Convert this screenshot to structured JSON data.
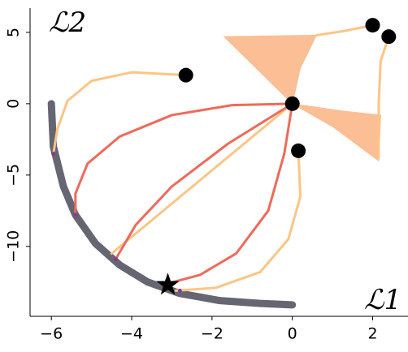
{
  "chart_data": {
    "type": "line",
    "x_label": "ℒ1",
    "y_label": "ℒ2",
    "xlim": [
      -6.53,
      2.88
    ],
    "ylim": [
      -14.9,
      6.7
    ],
    "xticks": [
      {
        "value": -6,
        "label": "−6"
      },
      {
        "value": -4,
        "label": "−4"
      },
      {
        "value": -2,
        "label": "−2"
      },
      0,
      2
    ],
    "yticks": [
      {
        "value": -10,
        "label": "−10"
      },
      {
        "value": -5,
        "label": "−5"
      },
      0,
      5
    ],
    "series": [
      {
        "color": "#fbb88a",
        "fill": true,
        "x": [
          -1.7,
          0.6,
          0.2,
          0
        ],
        "values": [
          4.7,
          4.8,
          2.5,
          0
        ]
      },
      {
        "color": "#fbb88a",
        "fill": true,
        "x": [
          0,
          1.2,
          2.2,
          2.15,
          1.0
        ],
        "values": [
          0,
          -0.5,
          -0.8,
          -4.0,
          -1.6
        ]
      },
      {
        "color": "#666672",
        "width": 9,
        "x": [
          -6,
          -5.95,
          -5.7,
          -5.4,
          -4.9,
          -4.3,
          -3.6,
          -2.8,
          -1.8,
          -0.8,
          0
        ],
        "values": [
          0,
          -3,
          -5.8,
          -7.8,
          -9.8,
          -11.3,
          -12.5,
          -13.3,
          -13.8,
          -14,
          -14.1
        ]
      },
      {
        "color": "#fcc584",
        "width": 3,
        "x": [
          0.6,
          1.3,
          2.0
        ],
        "values": [
          4.8,
          5.1,
          5.5
        ]
      },
      {
        "color": "#fcc584",
        "width": 3,
        "x": [
          2.4,
          2.2,
          2.15,
          2.15
        ],
        "values": [
          4.7,
          3,
          0,
          -3.8
        ]
      },
      {
        "color": "#fcc584",
        "width": 3,
        "x": [
          -2.65,
          -4.0,
          -5.0,
          -5.6,
          -5.85,
          -5.95
        ],
        "values": [
          2.0,
          2.2,
          1.6,
          0.2,
          -1.8,
          -3.5
        ]
      },
      {
        "color": "#ee6a5a",
        "width": 3,
        "x": [
          0,
          -1.5,
          -3.0,
          -4.3,
          -5.1,
          -5.4,
          -5.4
        ],
        "values": [
          0,
          -0.1,
          -0.8,
          -2.3,
          -4.2,
          -6.3,
          -7.8
        ]
      },
      {
        "color": "#fcc584",
        "width": 3,
        "x": [
          0,
          -4.5
        ],
        "values": [
          0,
          -10.5
        ]
      },
      {
        "color": "#ee6a5a",
        "width": 3,
        "x": [
          0,
          -1.6,
          -3.0,
          -3.9,
          -4.4
        ],
        "values": [
          0,
          -2.8,
          -5.8,
          -8.5,
          -10.9
        ]
      },
      {
        "color": "#ee6a5a",
        "width": 3,
        "x": [
          0,
          -0.2,
          -0.6,
          -1.4,
          -2.3,
          -3.1
        ],
        "values": [
          0,
          -3.5,
          -7.5,
          -10.5,
          -12.0,
          -12.6
        ]
      },
      {
        "color": "#fcc584",
        "width": 3,
        "x": [
          0.15,
          0.2,
          -0.1,
          -0.8,
          -1.9,
          -2.9
        ],
        "values": [
          -3.3,
          -6.5,
          -9.5,
          -11.8,
          -12.9,
          -13.1
        ]
      }
    ],
    "markers": {
      "color": "#000000",
      "x": [
        -2.65,
        0,
        0.15,
        2.0,
        2.4
      ],
      "values": [
        2.0,
        0,
        -3.3,
        5.5,
        4.7
      ]
    },
    "ends": {
      "color": "#8a3a8a",
      "x": [
        -5.95,
        -5.4,
        -4.4,
        -3.1,
        -2.8
      ],
      "values": [
        -3.5,
        -7.8,
        -10.9,
        -12.6,
        -13.1
      ]
    },
    "star": {
      "color": "#000000",
      "x": [
        -3.1
      ],
      "values": [
        -12.7
      ]
    }
  }
}
